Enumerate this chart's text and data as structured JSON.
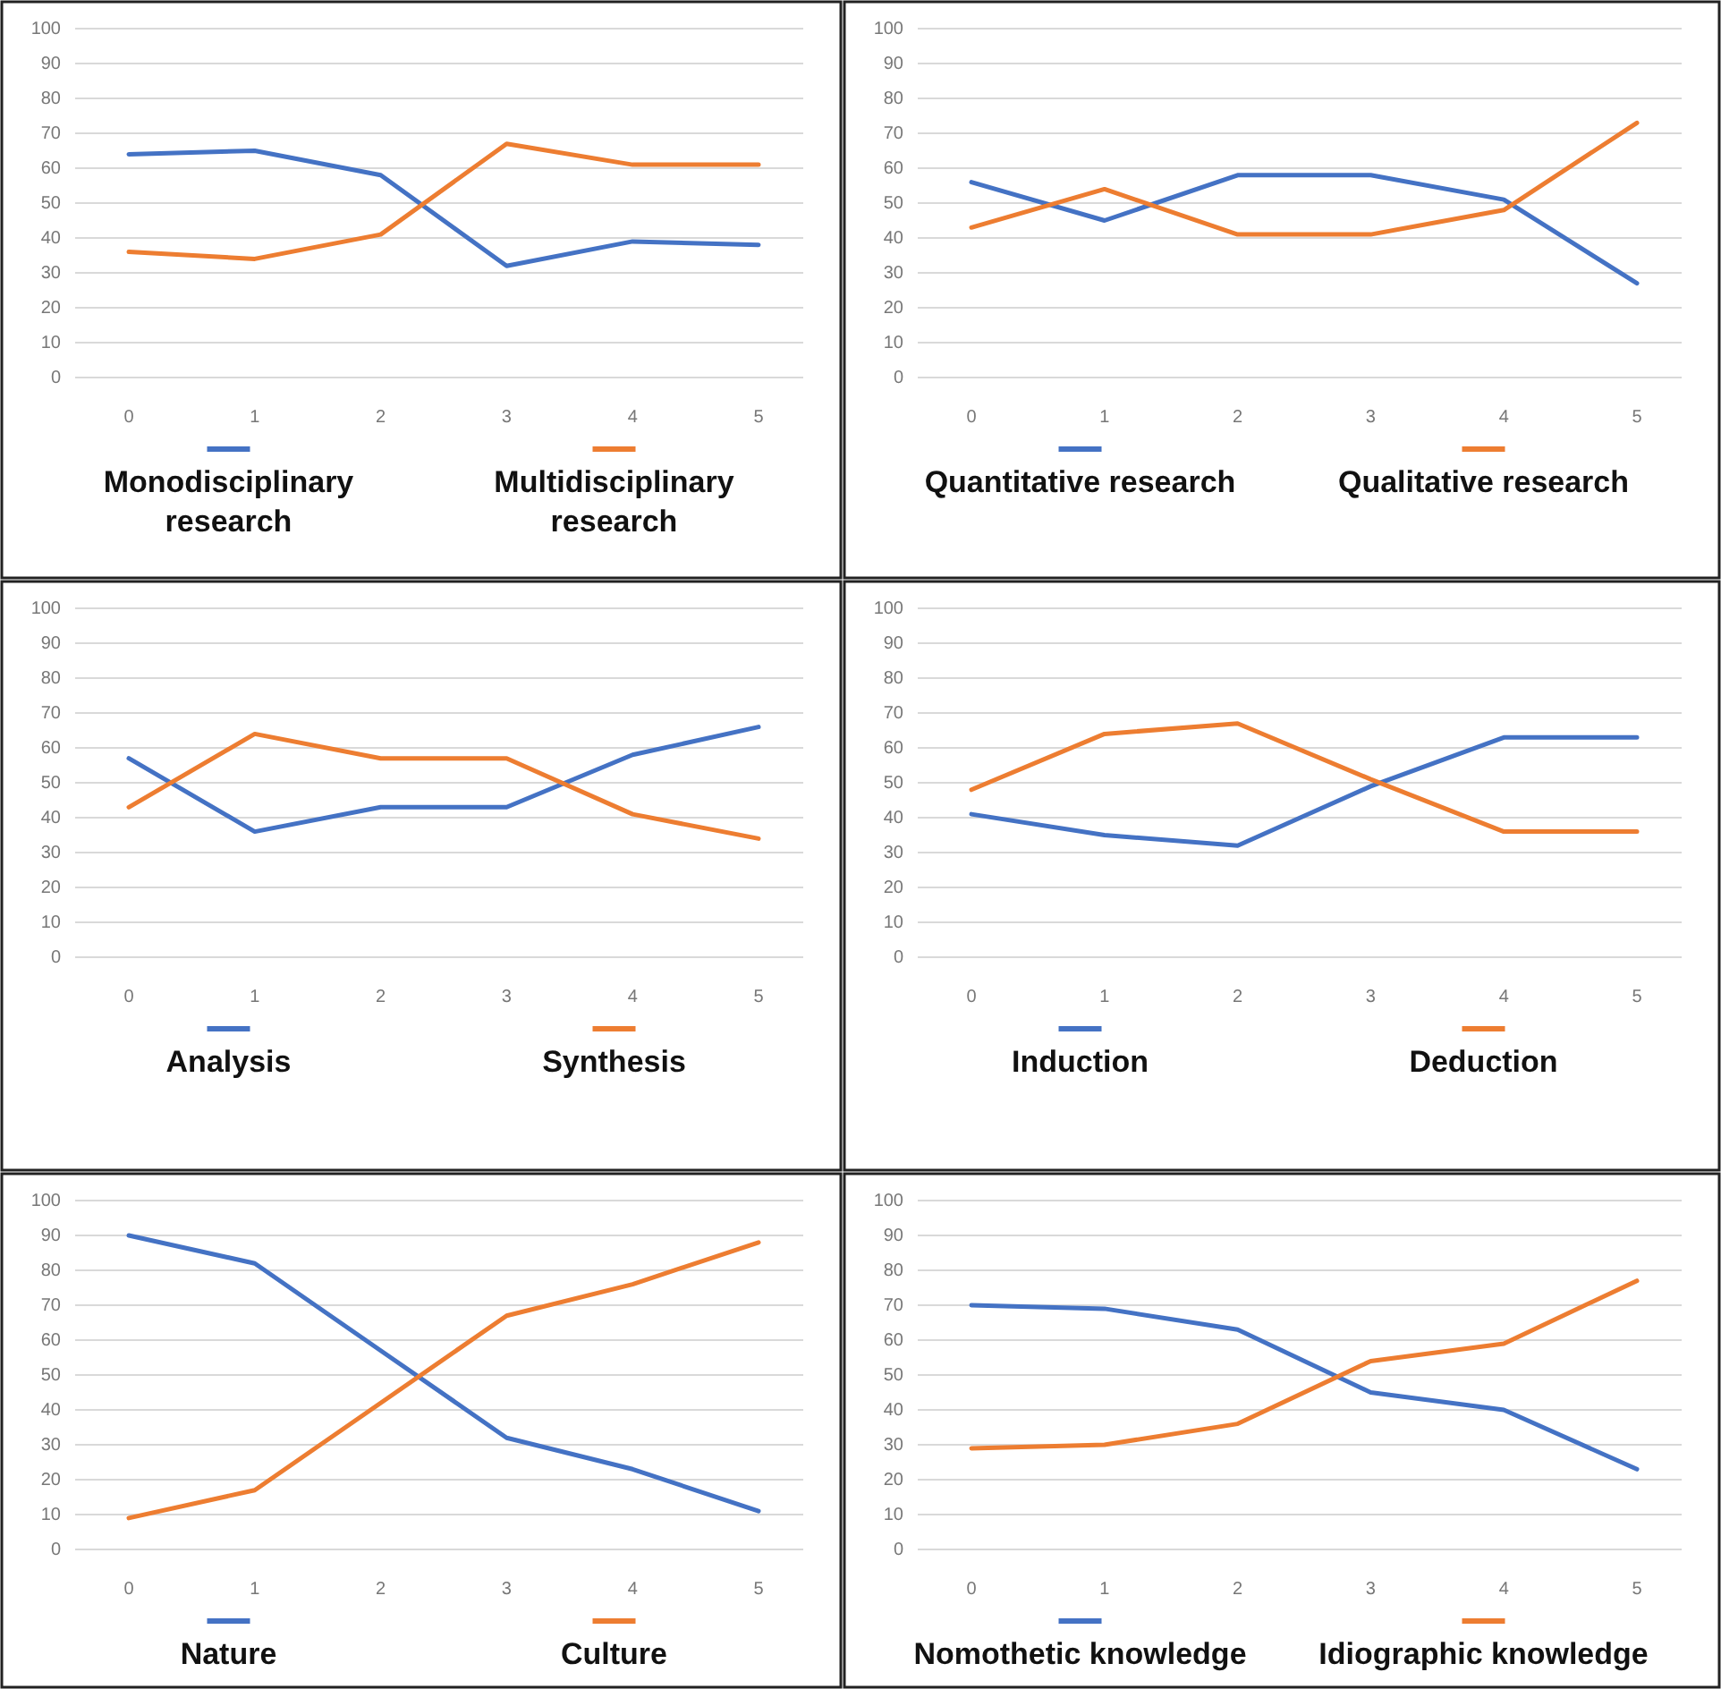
{
  "chart_data": [
    {
      "type": "line",
      "categories": [
        "0",
        "1",
        "2",
        "3",
        "4",
        "5"
      ],
      "ylim": [
        0,
        100
      ],
      "yticks": [
        0,
        10,
        20,
        30,
        40,
        50,
        60,
        70,
        80,
        90,
        100
      ],
      "grid": "y",
      "legend": "bottom",
      "series": [
        {
          "name": "Monodisciplinary research",
          "color": "#4472c4",
          "values": [
            64,
            65,
            58,
            32,
            39,
            38
          ]
        },
        {
          "name": "Multidisciplinary research",
          "color": "#ed7d31",
          "values": [
            36,
            34,
            41,
            67,
            61,
            61
          ]
        }
      ]
    },
    {
      "type": "line",
      "categories": [
        "0",
        "1",
        "2",
        "3",
        "4",
        "5"
      ],
      "ylim": [
        0,
        100
      ],
      "yticks": [
        0,
        10,
        20,
        30,
        40,
        50,
        60,
        70,
        80,
        90,
        100
      ],
      "grid": "y",
      "legend": "bottom",
      "series": [
        {
          "name": "Quantitative research",
          "color": "#4472c4",
          "values": [
            56,
            45,
            58,
            58,
            51,
            27
          ]
        },
        {
          "name": "Qualitative research",
          "color": "#ed7d31",
          "values": [
            43,
            54,
            41,
            41,
            48,
            73
          ]
        }
      ]
    },
    {
      "type": "line",
      "categories": [
        "0",
        "1",
        "2",
        "3",
        "4",
        "5"
      ],
      "ylim": [
        0,
        100
      ],
      "yticks": [
        0,
        10,
        20,
        30,
        40,
        50,
        60,
        70,
        80,
        90,
        100
      ],
      "grid": "y",
      "legend": "bottom",
      "series": [
        {
          "name": "Analysis",
          "color": "#4472c4",
          "values": [
            57,
            36,
            43,
            43,
            58,
            66
          ]
        },
        {
          "name": "Synthesis",
          "color": "#ed7d31",
          "values": [
            43,
            64,
            57,
            57,
            41,
            34
          ]
        }
      ]
    },
    {
      "type": "line",
      "categories": [
        "0",
        "1",
        "2",
        "3",
        "4",
        "5"
      ],
      "ylim": [
        0,
        100
      ],
      "yticks": [
        0,
        10,
        20,
        30,
        40,
        50,
        60,
        70,
        80,
        90,
        100
      ],
      "grid": "y",
      "legend": "bottom",
      "series": [
        {
          "name": "Induction",
          "color": "#4472c4",
          "values": [
            41,
            35,
            32,
            49,
            63,
            63
          ]
        },
        {
          "name": "Deduction",
          "color": "#ed7d31",
          "values": [
            48,
            64,
            67,
            51,
            36,
            36
          ]
        }
      ]
    },
    {
      "type": "line",
      "categories": [
        "0",
        "1",
        "2",
        "3",
        "4",
        "5"
      ],
      "ylim": [
        0,
        100
      ],
      "yticks": [
        0,
        10,
        20,
        30,
        40,
        50,
        60,
        70,
        80,
        90,
        100
      ],
      "grid": "y",
      "legend": "bottom",
      "series": [
        {
          "name": "Nature",
          "color": "#4472c4",
          "values": [
            90,
            82,
            57,
            32,
            23,
            11
          ]
        },
        {
          "name": "Culture",
          "color": "#ed7d31",
          "values": [
            9,
            17,
            42,
            67,
            76,
            88
          ]
        }
      ]
    },
    {
      "type": "line",
      "categories": [
        "0",
        "1",
        "2",
        "3",
        "4",
        "5"
      ],
      "ylim": [
        0,
        100
      ],
      "yticks": [
        0,
        10,
        20,
        30,
        40,
        50,
        60,
        70,
        80,
        90,
        100
      ],
      "grid": "y",
      "legend": "bottom",
      "series": [
        {
          "name": "Nomothetic knowledge",
          "color": "#4472c4",
          "values": [
            70,
            69,
            63,
            45,
            40,
            23
          ]
        },
        {
          "name": "Idiographic knowledge",
          "color": "#ed7d31",
          "values": [
            29,
            30,
            36,
            54,
            59,
            77
          ]
        }
      ]
    }
  ]
}
